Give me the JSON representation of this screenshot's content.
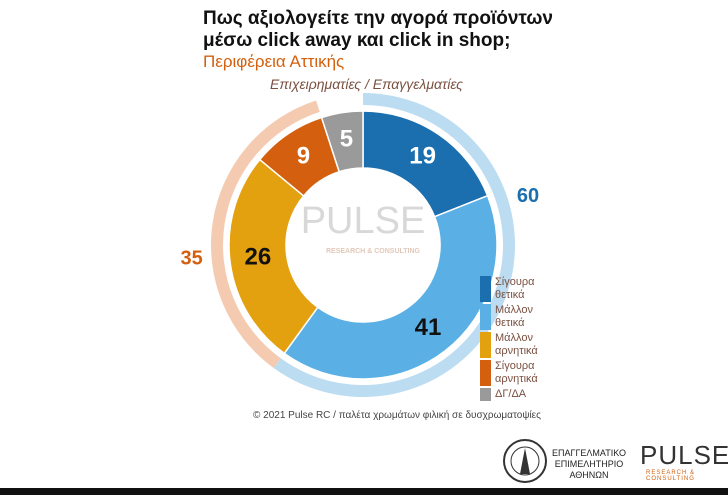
{
  "chart_data": {
    "type": "donut",
    "title": [
      "Πως αξιολογείτε την αγορά προϊόντων",
      "μέσω click away και click in shop;"
    ],
    "subtitle": "Περιφέρεια Αττικής",
    "panel_title": "Επιχειρηματίες / Επαγγελματίες",
    "categories": [
      "Σίγουρα θετικά",
      "Μάλλον θετικά",
      "Μάλλον αρνητικά",
      "Σίγουρα αρνητικά",
      "ΔΓ/ΔΑ"
    ],
    "values": [
      19,
      41,
      26,
      9,
      5
    ],
    "colors": [
      "#1b6fae",
      "#5ab0e5",
      "#e3a00f",
      "#d4600f",
      "#9a9a9a"
    ],
    "label_colors": [
      "#ffffff",
      "#111111",
      "#111111",
      "#ffffff",
      "#ffffff"
    ],
    "groups": [
      {
        "value": 60,
        "color": "#bcdcf1",
        "label_color": "#1b6fae"
      },
      {
        "value": 35,
        "color": "#f4cbb0",
        "label_color": "#d4600f"
      }
    ],
    "watermark": "PULSE",
    "watermark_sub": "RESEARCH & CONSULTING"
  },
  "footer": {
    "credit": "© 2021 Pulse RC  /  παλέτα χρωμάτων φιλική σε δυσχρωματοψίες",
    "chamber": [
      "ΕΠΑΓΓΕΛΜΑΤΙΚΟ",
      "ΕΠΙΜΕΛΗΤΗΡΙΟ",
      "ΑΘΗΝΩΝ"
    ],
    "brand": "PULSE",
    "brand_sub": "RESEARCH & CONSULTING"
  }
}
